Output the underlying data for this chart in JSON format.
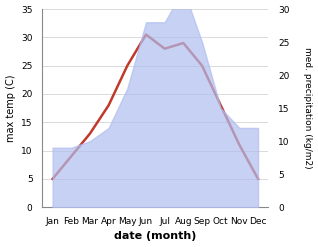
{
  "months": [
    "Jan",
    "Feb",
    "Mar",
    "Apr",
    "May",
    "Jun",
    "Jul",
    "Aug",
    "Sep",
    "Oct",
    "Nov",
    "Dec"
  ],
  "temperature": [
    5,
    9,
    13,
    18,
    25,
    30.5,
    28,
    29,
    25,
    18,
    11,
    5
  ],
  "precipitation": [
    9,
    9,
    10,
    12,
    18,
    28,
    28,
    33,
    25,
    15,
    12,
    12
  ],
  "temp_color": "#c0392b",
  "precip_color": "#b0bef0",
  "bg_color": "#ffffff",
  "ylabel_left": "max temp (C)",
  "ylabel_right": "med. precipitation (kg/m2)",
  "xlabel": "date (month)",
  "ylim_left": [
    0,
    35
  ],
  "ylim_right": [
    0,
    30
  ],
  "yticks_left": [
    0,
    5,
    10,
    15,
    20,
    25,
    30,
    35
  ],
  "yticks_right": [
    0,
    5,
    10,
    15,
    20,
    25,
    30
  ],
  "grid_color": "#cccccc"
}
